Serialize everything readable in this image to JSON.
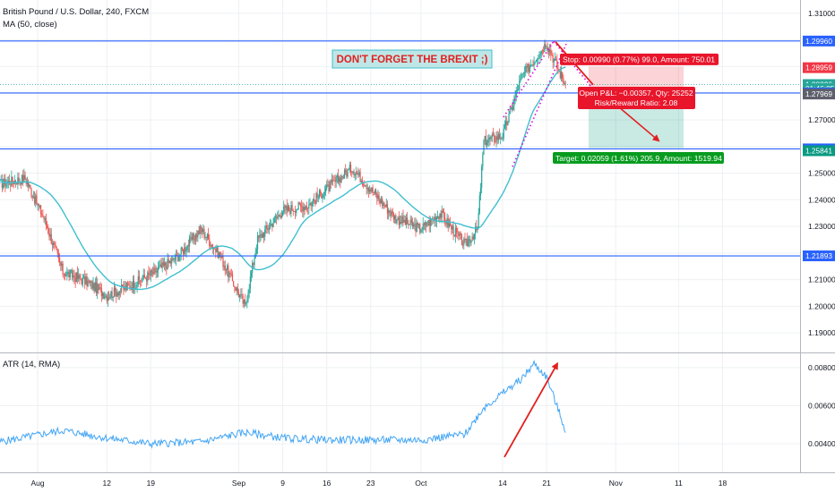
{
  "chart_data": [
    {
      "type": "candlestick",
      "title": "British Pound / U.S. Dollar, 240, FXCM",
      "indicator": "MA (50, close)",
      "ylim": [
        1.183,
        1.315
      ],
      "y_ticks": [
        "1.31000",
        "1.30000",
        "1.29000",
        "1.28000",
        "1.27000",
        "1.26000",
        "1.25000",
        "1.24000",
        "1.23000",
        "1.22000",
        "1.21000",
        "1.20000",
        "1.19000"
      ],
      "x_ticks": [
        "Aug",
        "12",
        "19",
        "Sep",
        "9",
        "16",
        "23",
        "Oct",
        "14",
        "21",
        "Nov",
        "11",
        "18"
      ],
      "approx_close_path": [
        {
          "date": "Jul 26",
          "close": 1.246
        },
        {
          "date": "Jul 30",
          "close": 1.248
        },
        {
          "date": "Aug 2",
          "close": 1.233
        },
        {
          "date": "Aug 5",
          "close": 1.213
        },
        {
          "date": "Aug 9",
          "close": 1.209
        },
        {
          "date": "Aug 12",
          "close": 1.204
        },
        {
          "date": "Aug 16",
          "close": 1.208
        },
        {
          "date": "Aug 19",
          "close": 1.212
        },
        {
          "date": "Aug 23",
          "close": 1.218
        },
        {
          "date": "Aug 27",
          "close": 1.229
        },
        {
          "date": "Aug 30",
          "close": 1.219
        },
        {
          "date": "Sep 3",
          "close": 1.2
        },
        {
          "date": "Sep 5",
          "close": 1.225
        },
        {
          "date": "Sep 9",
          "close": 1.236
        },
        {
          "date": "Sep 13",
          "close": 1.238
        },
        {
          "date": "Sep 16",
          "close": 1.244
        },
        {
          "date": "Sep 20",
          "close": 1.252
        },
        {
          "date": "Sep 23",
          "close": 1.244
        },
        {
          "date": "Sep 27",
          "close": 1.233
        },
        {
          "date": "Oct 1",
          "close": 1.229
        },
        {
          "date": "Oct 4",
          "close": 1.235
        },
        {
          "date": "Oct 8",
          "close": 1.223
        },
        {
          "date": "Oct 10",
          "close": 1.229
        },
        {
          "date": "Oct 11",
          "close": 1.262
        },
        {
          "date": "Oct 14",
          "close": 1.264
        },
        {
          "date": "Oct 17",
          "close": 1.286
        },
        {
          "date": "Oct 21",
          "close": 1.299
        },
        {
          "date": "Oct 23",
          "close": 1.288
        },
        {
          "date": "Oct 24",
          "close": 1.2833
        }
      ],
      "horizontal_levels": [
        {
          "label": "1.29960",
          "value": 1.2996,
          "color": "#2962ff"
        },
        {
          "label": "1.28010",
          "value": 1.2801,
          "color": "#2962ff"
        },
        {
          "label": "1.25910",
          "value": 1.2591,
          "color": "#2962ff"
        },
        {
          "label": "1.21893",
          "value": 1.21893,
          "color": "#2962ff"
        }
      ],
      "price_labels": [
        {
          "label": "1.29960",
          "value": 1.2996,
          "color": "#2962ff"
        },
        {
          "label": "1.28959",
          "value": 1.28959,
          "color": "#f23645"
        },
        {
          "label": "1.28326",
          "value": 1.28326,
          "color": "#26a69a"
        },
        {
          "label": "01:46:05",
          "value": 1.2817,
          "color": "#26a69a"
        },
        {
          "label": "1.28010",
          "value": 1.2801,
          "color": "#2962ff"
        },
        {
          "label": "1.27969",
          "value": 1.27969,
          "color": "#5d606b"
        },
        {
          "label": "1.25910",
          "value": 1.2591,
          "color": "#2962ff"
        },
        {
          "label": "1.25841",
          "value": 1.25841,
          "color": "#089981"
        },
        {
          "label": "1.21893",
          "value": 1.21893,
          "color": "#2962ff"
        }
      ],
      "annotations": {
        "headline": "DON'T FORGET THE BREXIT ;)",
        "stop": "Stop: 0.00990 (0.77%) 99.0, Amount: 750.01",
        "open_pl": "Open P&L: −0.00357, Qty: 25252",
        "risk_reward": "Risk/Reward Ratio: 2.08",
        "target": "Target: 0.02059 (1.61%) 205.9, Amount: 1519.94"
      },
      "short_position": {
        "entry": 1.2801,
        "stop": 1.29,
        "target": 1.2595
      },
      "colors": {
        "up": "#26a69a",
        "down": "#ef5350",
        "ma": "#3fbfcf",
        "level": "#2962ff",
        "arrow": "#e21f1f",
        "channel": "#e000e0"
      }
    },
    {
      "type": "line",
      "title": "ATR (14, RMA)",
      "ylim": [
        0.0025,
        0.0087
      ],
      "y_ticks": [
        "0.00800",
        "0.00600",
        "0.00400"
      ],
      "approx_values": [
        {
          "date": "Jul 26",
          "atr": 0.0041
        },
        {
          "date": "Aug 5",
          "atr": 0.0047
        },
        {
          "date": "Aug 12",
          "atr": 0.0043
        },
        {
          "date": "Aug 19",
          "atr": 0.004
        },
        {
          "date": "Aug 27",
          "atr": 0.0041
        },
        {
          "date": "Sep 3",
          "atr": 0.0046
        },
        {
          "date": "Sep 9",
          "atr": 0.0043
        },
        {
          "date": "Sep 16",
          "atr": 0.0042
        },
        {
          "date": "Sep 23",
          "atr": 0.0042
        },
        {
          "date": "Oct 1",
          "atr": 0.0042
        },
        {
          "date": "Oct 8",
          "atr": 0.0045
        },
        {
          "date": "Oct 11",
          "atr": 0.0059
        },
        {
          "date": "Oct 17",
          "atr": 0.0074
        },
        {
          "date": "Oct 19",
          "atr": 0.0082
        },
        {
          "date": "Oct 21",
          "atr": 0.0075
        },
        {
          "date": "Oct 24",
          "atr": 0.0047
        }
      ]
    }
  ]
}
